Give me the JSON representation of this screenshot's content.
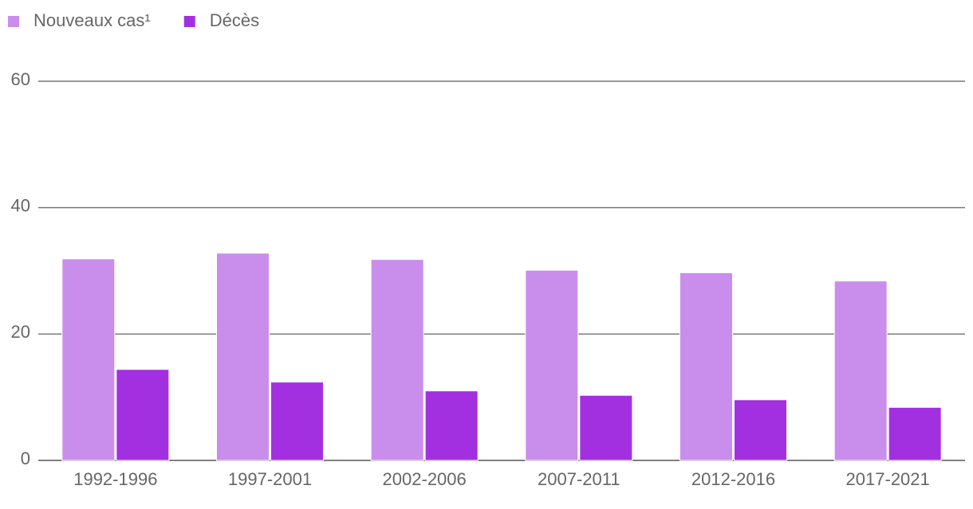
{
  "chart_data": {
    "type": "bar",
    "categories": [
      "1992-1996",
      "1997-2001",
      "2002-2006",
      "2007-2011",
      "2012-2016",
      "2017-2021"
    ],
    "series": [
      {
        "name": "Nouveaux cas¹",
        "color": "#c98eec",
        "values": [
          31.9,
          32.8,
          31.8,
          30.1,
          29.7,
          28.4
        ]
      },
      {
        "name": "Décès",
        "color": "#a330e0",
        "values": [
          14.4,
          12.4,
          11.0,
          10.3,
          9.6,
          8.4
        ]
      }
    ],
    "ylim": [
      0,
      60
    ],
    "yticks": [
      0,
      20,
      40,
      60
    ],
    "grid": true,
    "legend": "top"
  }
}
